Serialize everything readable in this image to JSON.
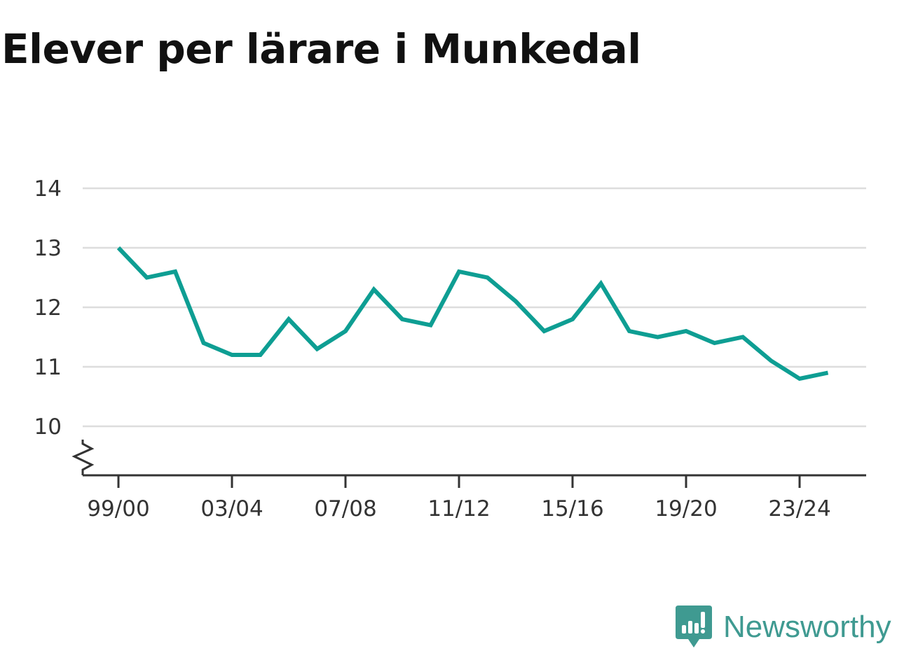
{
  "chart_data": {
    "type": "line",
    "title": "Elever per lärare i Munkedal",
    "x_tick_labels": [
      "99/00",
      "03/04",
      "07/08",
      "11/12",
      "15/16",
      "19/20",
      "23/24"
    ],
    "y_ticks": [
      10,
      11,
      12,
      13,
      14
    ],
    "ylim": [
      9.2,
      14
    ],
    "grid": true,
    "axis_break": true,
    "series": [
      {
        "color": "#0e9e93",
        "x": [
          "99/00",
          "00/01",
          "01/02",
          "02/03",
          "03/04",
          "04/05",
          "05/06",
          "06/07",
          "07/08",
          "08/09",
          "09/10",
          "10/11",
          "11/12",
          "12/13",
          "13/14",
          "14/15",
          "15/16",
          "16/17",
          "17/18",
          "18/19",
          "19/20",
          "20/21",
          "21/22",
          "22/23",
          "23/24",
          "24/25"
        ],
        "values": [
          13.0,
          12.5,
          12.6,
          11.4,
          11.2,
          11.2,
          11.8,
          11.3,
          11.6,
          12.3,
          11.8,
          11.7,
          12.6,
          12.5,
          12.1,
          11.6,
          11.8,
          12.4,
          11.6,
          11.5,
          11.6,
          11.4,
          11.5,
          11.1,
          10.8,
          10.9
        ]
      }
    ]
  },
  "brand": {
    "name": "Newsworthy",
    "color": "#3f9a91",
    "icon": "bar-chart-speech-bubble-icon"
  }
}
